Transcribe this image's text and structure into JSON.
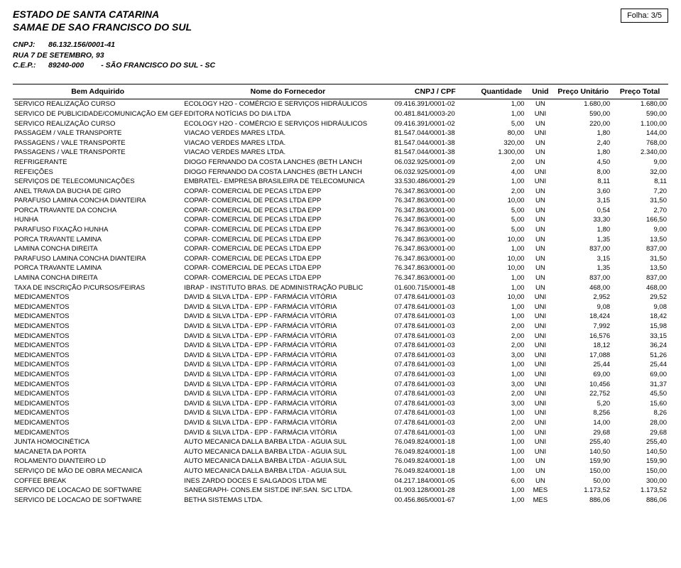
{
  "header": {
    "estado": "ESTADO DE SANTA CATARINA",
    "entidade": "SAMAE DE SAO FRANCISCO DO SUL",
    "cnpj_label": "CNPJ:",
    "cnpj": "86.132.156/0001-41",
    "endereco": "RUA 7 DE SETEMBRO, 93",
    "cep_label": "C.E.P.:",
    "cep": "89240-000",
    "cidade": "- SÃO FRANCISCO DO SUL - SC",
    "folha_label": "Folha:",
    "folha_value": "3/5"
  },
  "columns": {
    "bem": "Bem Adquirido",
    "fornecedor": "Nome do Fornecedor",
    "cnpj": "CNPJ / CPF",
    "quantidade": "Quantidade",
    "unid": "Unid",
    "preco_unit": "Preço Unitário",
    "preco_total": "Preço Total"
  },
  "rows": [
    {
      "bem": "SERVICO REALIZAÇÃO CURSO",
      "forn": "ECOLOGY H2O - COMÉRCIO E SERVIÇOS HIDRÁULICOS",
      "cnpj": "09.416.391/0001-02",
      "qtd": "1,00",
      "unid": "UN",
      "pu": "1.680,00",
      "pt": "1.680,00"
    },
    {
      "bem": "SERVICO DE PUBLICIDADE/COMUNICAÇÃO EM GERAL/SONORIZAÇÃO",
      "forn": "EDITORA NOTÍCIAS DO DIA LTDA",
      "cnpj": "00.481.841/0003-20",
      "qtd": "1,00",
      "unid": "UNI",
      "pu": "590,00",
      "pt": "590,00"
    },
    {
      "bem": "SERVICO REALIZAÇÃO CURSO",
      "forn": "ECOLOGY H2O - COMÉRCIO E SERVIÇOS HIDRÁULICOS",
      "cnpj": "09.416.391/0001-02",
      "qtd": "5,00",
      "unid": "UN",
      "pu": "220,00",
      "pt": "1.100,00"
    },
    {
      "bem": "PASSAGEM / VALE TRANSPORTE",
      "forn": "VIACAO VERDES MARES LTDA.",
      "cnpj": "81.547.044/0001-38",
      "qtd": "80,00",
      "unid": "UNI",
      "pu": "1,80",
      "pt": "144,00"
    },
    {
      "bem": "PASSAGENS / VALE TRANSPORTE",
      "forn": "VIACAO VERDES MARES LTDA.",
      "cnpj": "81.547.044/0001-38",
      "qtd": "320,00",
      "unid": "UN",
      "pu": "2,40",
      "pt": "768,00"
    },
    {
      "bem": "PASSAGENS / VALE TRANSPORTE",
      "forn": "VIACAO VERDES MARES LTDA.",
      "cnpj": "81.547.044/0001-38",
      "qtd": "1.300,00",
      "unid": "UN",
      "pu": "1,80",
      "pt": "2.340,00"
    },
    {
      "bem": "REFRIGERANTE",
      "forn": "DIOGO FERNANDO DA COSTA LANCHES (BETH LANCH",
      "cnpj": "06.032.925/0001-09",
      "qtd": "2,00",
      "unid": "UN",
      "pu": "4,50",
      "pt": "9,00"
    },
    {
      "bem": "REFEIÇÕES",
      "forn": "DIOGO FERNANDO DA COSTA LANCHES (BETH LANCH",
      "cnpj": "06.032.925/0001-09",
      "qtd": "4,00",
      "unid": "UNI",
      "pu": "8,00",
      "pt": "32,00"
    },
    {
      "bem": "SERVIÇOS DE TELECOMUNICAÇÕES",
      "forn": "EMBRATEL- EMPRESA BRASILEIRA DE TELECOMUNICA",
      "cnpj": "33.530.486/0001-29",
      "qtd": "1,00",
      "unid": "UNI",
      "pu": "8,11",
      "pt": "8,11"
    },
    {
      "bem": "ANEL TRAVA DA BUCHA DE GIRO",
      "forn": "COPAR- COMERCIAL DE PECAS LTDA EPP",
      "cnpj": "76.347.863/0001-00",
      "qtd": "2,00",
      "unid": "UN",
      "pu": "3,60",
      "pt": "7,20"
    },
    {
      "bem": "PARAFUSO LAMINA CONCHA DIANTEIRA",
      "forn": "COPAR- COMERCIAL DE PECAS LTDA EPP",
      "cnpj": "76.347.863/0001-00",
      "qtd": "10,00",
      "unid": "UN",
      "pu": "3,15",
      "pt": "31,50"
    },
    {
      "bem": "PORCA TRAVANTE DA CONCHA",
      "forn": "COPAR- COMERCIAL DE PECAS LTDA EPP",
      "cnpj": "76.347.863/0001-00",
      "qtd": "5,00",
      "unid": "UN",
      "pu": "0,54",
      "pt": "2,70"
    },
    {
      "bem": "HUNHA",
      "forn": "COPAR- COMERCIAL DE PECAS LTDA EPP",
      "cnpj": "76.347.863/0001-00",
      "qtd": "5,00",
      "unid": "UN",
      "pu": "33,30",
      "pt": "166,50"
    },
    {
      "bem": "PARAFUSO FIXAÇÃO HUNHA",
      "forn": "COPAR- COMERCIAL DE PECAS LTDA EPP",
      "cnpj": "76.347.863/0001-00",
      "qtd": "5,00",
      "unid": "UN",
      "pu": "1,80",
      "pt": "9,00"
    },
    {
      "bem": "PORCA TRAVANTE LAMINA",
      "forn": "COPAR- COMERCIAL DE PECAS LTDA EPP",
      "cnpj": "76.347.863/0001-00",
      "qtd": "10,00",
      "unid": "UN",
      "pu": "1,35",
      "pt": "13,50"
    },
    {
      "bem": "LAMINA CONCHA DIREITA",
      "forn": "COPAR- COMERCIAL DE PECAS LTDA EPP",
      "cnpj": "76.347.863/0001-00",
      "qtd": "1,00",
      "unid": "UN",
      "pu": "837,00",
      "pt": "837,00"
    },
    {
      "bem": "PARAFUSO LAMINA CONCHA DIANTEIRA",
      "forn": "COPAR- COMERCIAL DE PECAS LTDA EPP",
      "cnpj": "76.347.863/0001-00",
      "qtd": "10,00",
      "unid": "UN",
      "pu": "3,15",
      "pt": "31,50"
    },
    {
      "bem": "PORCA TRAVANTE LAMINA",
      "forn": "COPAR- COMERCIAL DE PECAS LTDA EPP",
      "cnpj": "76.347.863/0001-00",
      "qtd": "10,00",
      "unid": "UN",
      "pu": "1,35",
      "pt": "13,50"
    },
    {
      "bem": "LAMINA CONCHA DIREITA",
      "forn": "COPAR- COMERCIAL DE PECAS LTDA EPP",
      "cnpj": "76.347.863/0001-00",
      "qtd": "1,00",
      "unid": "UN",
      "pu": "837,00",
      "pt": "837,00"
    },
    {
      "bem": "TAXA DE INSCRIÇÃO P/CURSOS/FEIRAS",
      "forn": "IBRAP - INSTITUTO BRAS. DE ADMINISTRAÇÃO PUBLIC",
      "cnpj": "01.600.715/0001-48",
      "qtd": "1,00",
      "unid": "UN",
      "pu": "468,00",
      "pt": "468,00"
    },
    {
      "bem": "MEDICAMENTOS",
      "forn": "DAVID & SILVA LTDA - EPP - FARMÁCIA VITÓRIA",
      "cnpj": "07.478.641/0001-03",
      "qtd": "10,00",
      "unid": "UNI",
      "pu": "2,952",
      "pt": "29,52"
    },
    {
      "bem": "MEDICAMENTOS",
      "forn": "DAVID & SILVA LTDA - EPP - FARMÁCIA VITÓRIA",
      "cnpj": "07.478.641/0001-03",
      "qtd": "1,00",
      "unid": "UNI",
      "pu": "9,08",
      "pt": "9,08"
    },
    {
      "bem": "MEDICAMENTOS",
      "forn": "DAVID & SILVA LTDA - EPP - FARMÁCIA VITÓRIA",
      "cnpj": "07.478.641/0001-03",
      "qtd": "1,00",
      "unid": "UNI",
      "pu": "18,424",
      "pt": "18,42"
    },
    {
      "bem": "MEDICAMENTOS",
      "forn": "DAVID & SILVA LTDA - EPP - FARMÁCIA VITÓRIA",
      "cnpj": "07.478.641/0001-03",
      "qtd": "2,00",
      "unid": "UNI",
      "pu": "7,992",
      "pt": "15,98"
    },
    {
      "bem": "MEDICAMENTOS",
      "forn": "DAVID & SILVA LTDA - EPP - FARMÁCIA VITÓRIA",
      "cnpj": "07.478.641/0001-03",
      "qtd": "2,00",
      "unid": "UNI",
      "pu": "16,576",
      "pt": "33,15"
    },
    {
      "bem": "MEDICAMENTOS",
      "forn": "DAVID & SILVA LTDA - EPP - FARMÁCIA VITÓRIA",
      "cnpj": "07.478.641/0001-03",
      "qtd": "2,00",
      "unid": "UNI",
      "pu": "18,12",
      "pt": "36,24"
    },
    {
      "bem": "MEDICAMENTOS",
      "forn": "DAVID & SILVA LTDA - EPP - FARMÁCIA VITÓRIA",
      "cnpj": "07.478.641/0001-03",
      "qtd": "3,00",
      "unid": "UNI",
      "pu": "17,088",
      "pt": "51,26"
    },
    {
      "bem": "MEDICAMENTOS",
      "forn": "DAVID & SILVA LTDA - EPP - FARMÁCIA VITÓRIA",
      "cnpj": "07.478.641/0001-03",
      "qtd": "1,00",
      "unid": "UNI",
      "pu": "25,44",
      "pt": "25,44"
    },
    {
      "bem": "MEDICAMENTOS",
      "forn": "DAVID & SILVA LTDA - EPP - FARMÁCIA VITÓRIA",
      "cnpj": "07.478.641/0001-03",
      "qtd": "1,00",
      "unid": "UNI",
      "pu": "69,00",
      "pt": "69,00"
    },
    {
      "bem": "MEDICAMENTOS",
      "forn": "DAVID & SILVA LTDA - EPP - FARMÁCIA VITÓRIA",
      "cnpj": "07.478.641/0001-03",
      "qtd": "3,00",
      "unid": "UNI",
      "pu": "10,456",
      "pt": "31,37"
    },
    {
      "bem": "MEDICAMENTOS",
      "forn": "DAVID & SILVA LTDA - EPP - FARMÁCIA VITÓRIA",
      "cnpj": "07.478.641/0001-03",
      "qtd": "2,00",
      "unid": "UNI",
      "pu": "22,752",
      "pt": "45,50"
    },
    {
      "bem": "MEDICAMENTOS",
      "forn": "DAVID & SILVA LTDA - EPP - FARMÁCIA VITÓRIA",
      "cnpj": "07.478.641/0001-03",
      "qtd": "3,00",
      "unid": "UNI",
      "pu": "5,20",
      "pt": "15,60"
    },
    {
      "bem": "MEDICAMENTOS",
      "forn": "DAVID & SILVA LTDA - EPP - FARMÁCIA VITÓRIA",
      "cnpj": "07.478.641/0001-03",
      "qtd": "1,00",
      "unid": "UNI",
      "pu": "8,256",
      "pt": "8,26"
    },
    {
      "bem": "MEDICAMENTOS",
      "forn": "DAVID & SILVA LTDA - EPP - FARMÁCIA VITÓRIA",
      "cnpj": "07.478.641/0001-03",
      "qtd": "2,00",
      "unid": "UNI",
      "pu": "14,00",
      "pt": "28,00"
    },
    {
      "bem": "MEDICAMENTOS",
      "forn": "DAVID & SILVA LTDA - EPP - FARMÁCIA VITÓRIA",
      "cnpj": "07.478.641/0001-03",
      "qtd": "1,00",
      "unid": "UNI",
      "pu": "29,68",
      "pt": "29,68"
    },
    {
      "bem": "JUNTA HOMOCINÉTICA",
      "forn": "AUTO MECANICA DALLA BARBA LTDA - AGUIA SUL",
      "cnpj": "76.049.824/0001-18",
      "qtd": "1,00",
      "unid": "UNI",
      "pu": "255,40",
      "pt": "255,40"
    },
    {
      "bem": "MACANETA DA PORTA",
      "forn": "AUTO MECANICA DALLA BARBA LTDA - AGUIA SUL",
      "cnpj": "76.049.824/0001-18",
      "qtd": "1,00",
      "unid": "UNI",
      "pu": "140,50",
      "pt": "140,50"
    },
    {
      "bem": "ROLAMENTO DIANTEIRO LD",
      "forn": "AUTO MECANICA DALLA BARBA LTDA - AGUIA SUL",
      "cnpj": "76.049.824/0001-18",
      "qtd": "1,00",
      "unid": "UN",
      "pu": "159,90",
      "pt": "159,90"
    },
    {
      "bem": "SERVIÇO DE MÃO DE OBRA MECANICA",
      "forn": "AUTO MECANICA DALLA BARBA LTDA - AGUIA SUL",
      "cnpj": "76.049.824/0001-18",
      "qtd": "1,00",
      "unid": "UN",
      "pu": "150,00",
      "pt": "150,00"
    },
    {
      "bem": "COFFEE BREAK",
      "forn": "INES ZARDO DOCES E SALGADOS LTDA ME",
      "cnpj": "04.217.184/0001-05",
      "qtd": "6,00",
      "unid": "UN",
      "pu": "50,00",
      "pt": "300,00"
    },
    {
      "bem": "SERVICO DE LOCACAO DE SOFTWARE",
      "forn": "SANEGRAPH- CONS.EM SIST.DE INF.SAN. S/C LTDA.",
      "cnpj": "01.903.128/0001-28",
      "qtd": "1,00",
      "unid": "MES",
      "pu": "1.173,52",
      "pt": "1.173,52"
    },
    {
      "bem": "SERVICO DE LOCACAO DE SOFTWARE",
      "forn": "BETHA SISTEMAS LTDA.",
      "cnpj": "00.456.865/0001-67",
      "qtd": "1,00",
      "unid": "MES",
      "pu": "886,06",
      "pt": "886,06"
    }
  ],
  "style": {
    "text_color": "#000000",
    "bg_color": "#ffffff",
    "border_color": "#000000",
    "header_fontsize": 14,
    "table_header_fontsize": 10.5,
    "cell_fontsize": 9.5
  }
}
